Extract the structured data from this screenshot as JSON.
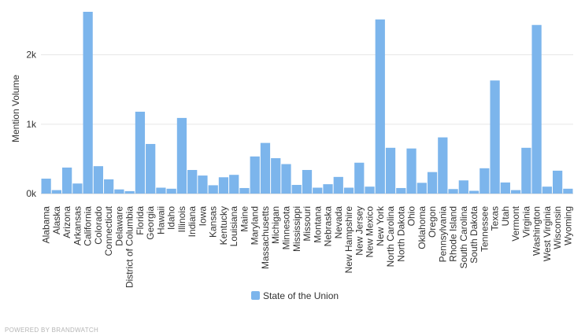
{
  "credit": "POWERED BY BRANDWATCH",
  "chart_data": {
    "type": "bar",
    "ylabel": "Mention Volume",
    "xlabel": "",
    "ylim": [
      0,
      2700
    ],
    "yticks": [
      0,
      1000,
      2000
    ],
    "ytick_labels": [
      "0k",
      "1k",
      "2k"
    ],
    "grid": true,
    "legend_position": "bottom-center",
    "color": "#7cb5ec",
    "categories": [
      "Alabama",
      "Alaska",
      "Arizona",
      "Arkansas",
      "California",
      "Colorado",
      "Connecticut",
      "Delaware",
      "District of Columbia",
      "Florida",
      "Georgia",
      "Hawaii",
      "Idaho",
      "Illinois",
      "Indiana",
      "Iowa",
      "Kansas",
      "Kentucky",
      "Louisiana",
      "Maine",
      "Maryland",
      "Massachusetts",
      "Michigan",
      "Minnesota",
      "Mississippi",
      "Missouri",
      "Montana",
      "Nebraska",
      "Nevada",
      "New Hampshire",
      "New Jersey",
      "New Mexico",
      "New York",
      "North Carolina",
      "North Dakota",
      "Ohio",
      "Oklahoma",
      "Oregon",
      "Pennsylvania",
      "Rhode Island",
      "South Carolina",
      "South Dakota",
      "Tennessee",
      "Texas",
      "Utah",
      "Vermont",
      "Virginia",
      "Washington",
      "West Virginia",
      "Wisconsin",
      "Wyoming"
    ],
    "series": [
      {
        "name": "State of the Union",
        "values": [
          215,
          50,
          375,
          145,
          2620,
          395,
          205,
          60,
          35,
          1180,
          715,
          85,
          70,
          1090,
          340,
          260,
          120,
          235,
          270,
          80,
          535,
          730,
          510,
          425,
          125,
          340,
          85,
          135,
          240,
          85,
          445,
          100,
          2510,
          660,
          80,
          650,
          155,
          310,
          810,
          65,
          190,
          40,
          365,
          1630,
          160,
          50,
          660,
          2430,
          100,
          330,
          70
        ]
      }
    ]
  }
}
